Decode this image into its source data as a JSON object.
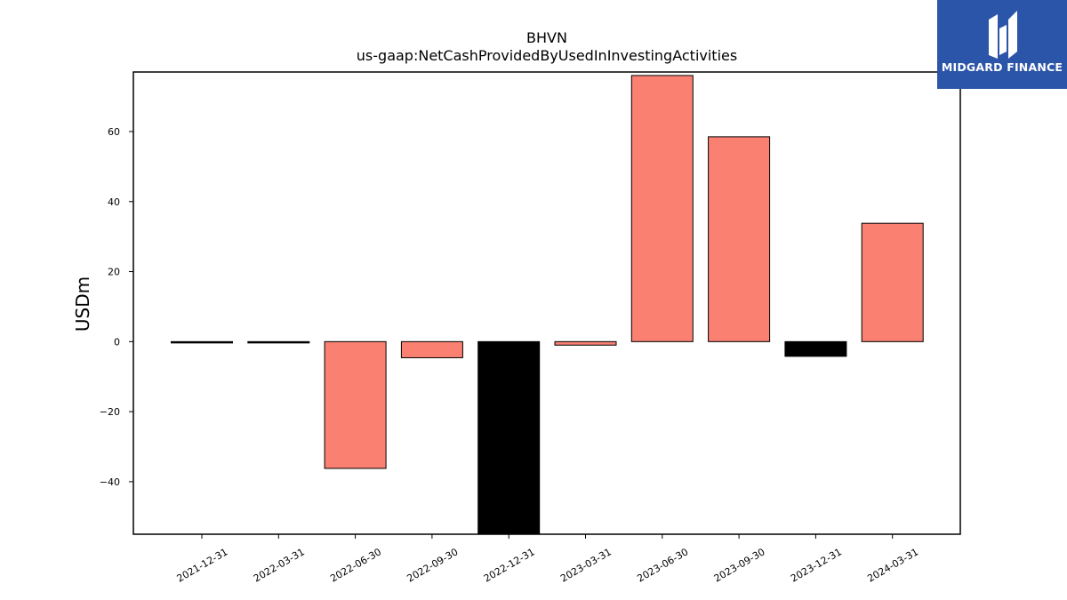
{
  "chart_data": {
    "type": "bar",
    "title": "BHVN",
    "subtitle": "us-gaap:NetCashProvidedByUsedInInvestingActivities",
    "ylabel": "USDm",
    "xlabel": "",
    "ylim": [
      -55,
      77
    ],
    "yticks": [
      -40,
      -20,
      0,
      20,
      40,
      60
    ],
    "ytick_labels": [
      "−40",
      "−20",
      "0",
      "20",
      "40",
      "60"
    ],
    "categories": [
      "2021-12-31",
      "2022-03-31",
      "2022-06-30",
      "2022-09-30",
      "2022-12-31",
      "2023-03-31",
      "2023-06-30",
      "2023-09-30",
      "2023-12-31",
      "2024-03-31"
    ],
    "values": [
      -0.2,
      -0.2,
      -36.2,
      -4.6,
      -57.0,
      -1.0,
      76.0,
      58.5,
      -4.2,
      33.8
    ],
    "bar_colors": [
      "#000000",
      "#000000",
      "#fa8072",
      "#fa8072",
      "#000000",
      "#fa8072",
      "#fa8072",
      "#fa8072",
      "#000000",
      "#fa8072"
    ],
    "grid": false,
    "legend": "none"
  },
  "logo": {
    "text": "MIDGARD FINANCE"
  }
}
